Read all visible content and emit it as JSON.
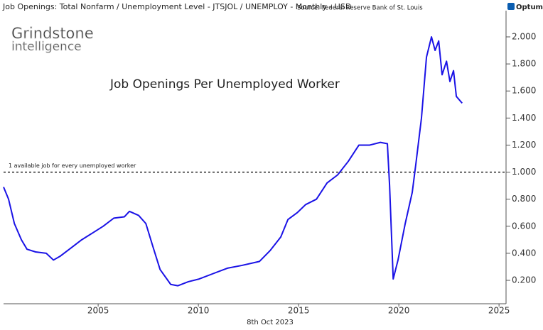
{
  "chart_data": {
    "type": "line",
    "title": "Job Openings: Total Nonfarm / Unemployment Level - JTSJOL / UNEMPLOY - Monthly - USD",
    "source": "Source: Federal Reserve Bank of St. Louis",
    "brand": "Optuma",
    "watermark": [
      "Grindstone",
      "intelligence"
    ],
    "annotation": "Job Openings Per Unemployed Worker",
    "date_label": "8th Oct 2023",
    "reference_line": {
      "value": 1,
      "label": "1 available job for every unemployed worker"
    },
    "xlim": [
      2000.28,
      2025.35
    ],
    "xticks": [
      2005,
      2010,
      2015,
      2020,
      2025
    ],
    "ylim": [
      0.027,
      2.194
    ],
    "yticks": [
      {
        "value": 0.2,
        "label": "0.200"
      },
      {
        "value": 0.4,
        "label": "0.400"
      },
      {
        "value": 0.6,
        "label": "0.600"
      },
      {
        "value": 0.8,
        "label": "0.800"
      },
      {
        "value": 1.0,
        "label": "1.000"
      },
      {
        "value": 1.2,
        "label": "1.200"
      },
      {
        "value": 1.4,
        "label": "1.400"
      },
      {
        "value": 1.6,
        "label": "1.600"
      },
      {
        "value": 1.8,
        "label": "1.800"
      },
      {
        "value": 2.0,
        "label": "2.000"
      }
    ],
    "y_axis_side": "right",
    "series": [
      {
        "color": "#1a12e6",
        "x": [
          2000.28,
          2000.53,
          2000.82,
          2001.17,
          2001.45,
          2001.88,
          2002.41,
          2002.77,
          2003.12,
          2003.65,
          2004.18,
          2004.72,
          2005.25,
          2005.78,
          2006.31,
          2006.56,
          2007.02,
          2007.38,
          2007.73,
          2008.09,
          2008.62,
          2008.97,
          2009.5,
          2010.04,
          2010.74,
          2011.45,
          2012.16,
          2013.05,
          2013.58,
          2014.11,
          2014.47,
          2014.93,
          2015.35,
          2015.89,
          2016.42,
          2016.95,
          2017.48,
          2018.01,
          2018.55,
          2019.08,
          2019.43,
          2019.54,
          2019.72,
          2019.96,
          2020.32,
          2020.67,
          2020.85,
          2021.13,
          2021.38,
          2021.63,
          2021.81,
          2021.99,
          2022.16,
          2022.38,
          2022.55,
          2022.73,
          2022.87,
          2023.16
        ],
        "values": [
          0.89,
          0.8,
          0.62,
          0.5,
          0.43,
          0.41,
          0.4,
          0.35,
          0.38,
          0.44,
          0.5,
          0.55,
          0.6,
          0.66,
          0.67,
          0.71,
          0.68,
          0.62,
          0.45,
          0.28,
          0.17,
          0.16,
          0.19,
          0.21,
          0.25,
          0.29,
          0.31,
          0.34,
          0.42,
          0.52,
          0.65,
          0.7,
          0.76,
          0.8,
          0.92,
          0.98,
          1.08,
          1.2,
          1.2,
          1.22,
          1.21,
          0.9,
          0.21,
          0.35,
          0.62,
          0.85,
          1.06,
          1.4,
          1.85,
          2.0,
          1.9,
          1.97,
          1.72,
          1.82,
          1.67,
          1.75,
          1.56,
          1.51
        ]
      }
    ]
  }
}
